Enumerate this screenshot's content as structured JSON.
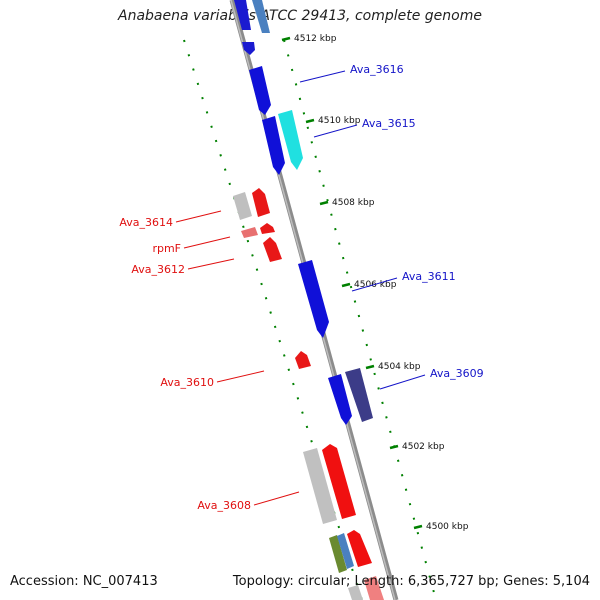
{
  "title": "Anabaena variabilis ATCC 29413, complete genome",
  "footer": {
    "accession": "Accession: NC_007413",
    "summary": "Topology: circular; Length: 6,365,727 bp; Genes: 5,104"
  },
  "colors": {
    "forward_label": "#1414c8",
    "reverse_label": "#e01010",
    "ticks": "#008000",
    "backbone": "#8c8c8c"
  },
  "kbp_ticks": [
    "4512 kbp",
    "4510 kbp",
    "4508 kbp",
    "4506 kbp",
    "4504 kbp",
    "4502 kbp",
    "4500 kbp"
  ],
  "gene_labels": {
    "forward": [
      "Ava_3616",
      "Ava_3615",
      "Ava_3611",
      "Ava_3609"
    ],
    "reverse": [
      "Ava_3614",
      "rpmF",
      "Ava_3612",
      "Ava_3610",
      "Ava_3608"
    ]
  }
}
